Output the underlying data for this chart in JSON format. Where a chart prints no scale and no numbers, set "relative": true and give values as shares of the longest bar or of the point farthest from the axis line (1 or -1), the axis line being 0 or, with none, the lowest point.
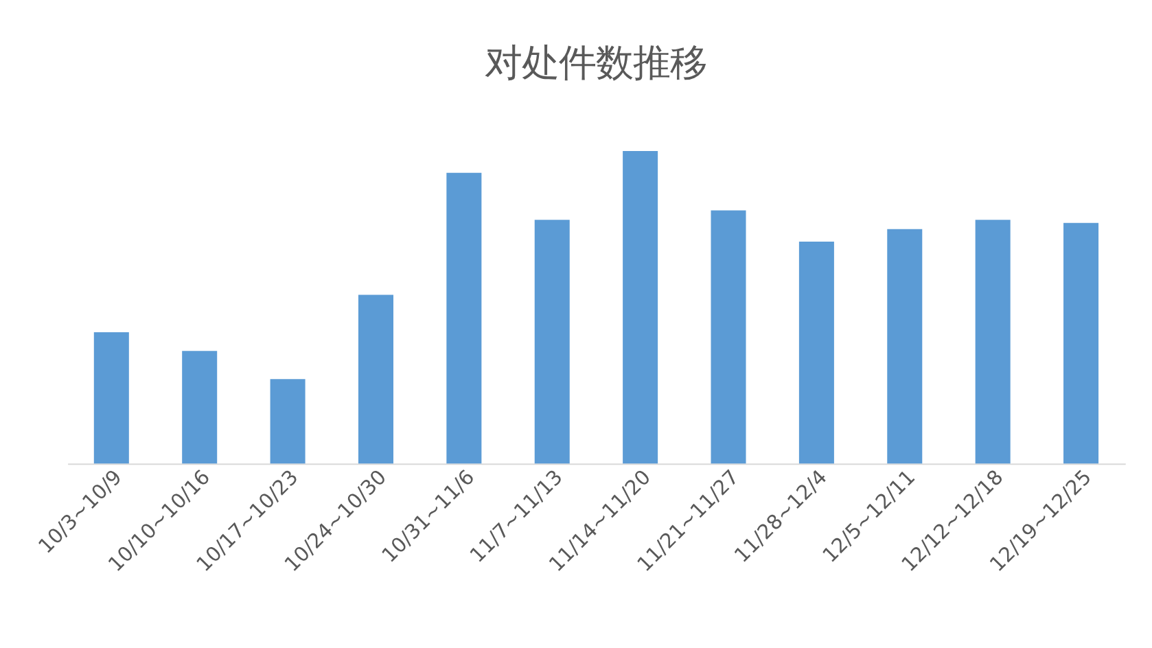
{
  "chart_data": {
    "type": "bar",
    "title": "对处件数推移",
    "relative": true,
    "color": "#5b9bd5",
    "grid": false,
    "categories": [
      "10/3~10/9",
      "10/10~10/16",
      "10/17~10/23",
      "10/24~10/30",
      "10/31~11/6",
      "11/7~11/13",
      "11/14~11/20",
      "11/21~11/27",
      "11/28~12/4",
      "12/5~12/11",
      "12/12~12/18",
      "12/19~12/25"
    ],
    "values": [
      0.42,
      0.36,
      0.27,
      0.54,
      0.93,
      0.78,
      1,
      0.81,
      0.71,
      0.75,
      0.78,
      0.77
    ]
  }
}
